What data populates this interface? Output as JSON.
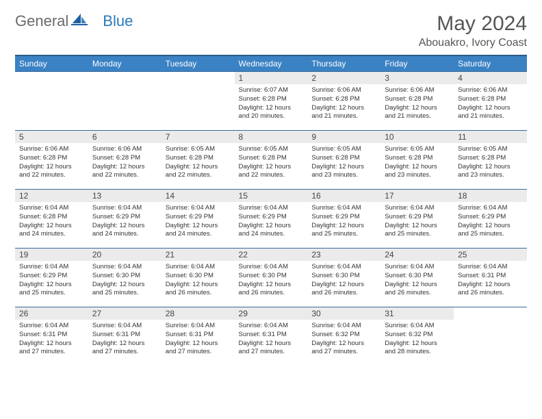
{
  "logo": {
    "text1": "General",
    "text2": "Blue"
  },
  "title": "May 2024",
  "location": "Abouakro, Ivory Coast",
  "colors": {
    "header_bg": "#3b82c4",
    "header_border_top": "#2a5a8a",
    "row_border": "#3b6a9a",
    "daynum_bg": "#ebebeb",
    "logo_accent": "#2a7ab8"
  },
  "day_labels": [
    "Sunday",
    "Monday",
    "Tuesday",
    "Wednesday",
    "Thursday",
    "Friday",
    "Saturday"
  ],
  "weeks": [
    [
      {
        "n": "",
        "sr": "",
        "ss": "",
        "dl": ""
      },
      {
        "n": "",
        "sr": "",
        "ss": "",
        "dl": ""
      },
      {
        "n": "",
        "sr": "",
        "ss": "",
        "dl": ""
      },
      {
        "n": "1",
        "sr": "6:07 AM",
        "ss": "6:28 PM",
        "dl": "12 hours and 20 minutes."
      },
      {
        "n": "2",
        "sr": "6:06 AM",
        "ss": "6:28 PM",
        "dl": "12 hours and 21 minutes."
      },
      {
        "n": "3",
        "sr": "6:06 AM",
        "ss": "6:28 PM",
        "dl": "12 hours and 21 minutes."
      },
      {
        "n": "4",
        "sr": "6:06 AM",
        "ss": "6:28 PM",
        "dl": "12 hours and 21 minutes."
      }
    ],
    [
      {
        "n": "5",
        "sr": "6:06 AM",
        "ss": "6:28 PM",
        "dl": "12 hours and 22 minutes."
      },
      {
        "n": "6",
        "sr": "6:06 AM",
        "ss": "6:28 PM",
        "dl": "12 hours and 22 minutes."
      },
      {
        "n": "7",
        "sr": "6:05 AM",
        "ss": "6:28 PM",
        "dl": "12 hours and 22 minutes."
      },
      {
        "n": "8",
        "sr": "6:05 AM",
        "ss": "6:28 PM",
        "dl": "12 hours and 22 minutes."
      },
      {
        "n": "9",
        "sr": "6:05 AM",
        "ss": "6:28 PM",
        "dl": "12 hours and 23 minutes."
      },
      {
        "n": "10",
        "sr": "6:05 AM",
        "ss": "6:28 PM",
        "dl": "12 hours and 23 minutes."
      },
      {
        "n": "11",
        "sr": "6:05 AM",
        "ss": "6:28 PM",
        "dl": "12 hours and 23 minutes."
      }
    ],
    [
      {
        "n": "12",
        "sr": "6:04 AM",
        "ss": "6:28 PM",
        "dl": "12 hours and 24 minutes."
      },
      {
        "n": "13",
        "sr": "6:04 AM",
        "ss": "6:29 PM",
        "dl": "12 hours and 24 minutes."
      },
      {
        "n": "14",
        "sr": "6:04 AM",
        "ss": "6:29 PM",
        "dl": "12 hours and 24 minutes."
      },
      {
        "n": "15",
        "sr": "6:04 AM",
        "ss": "6:29 PM",
        "dl": "12 hours and 24 minutes."
      },
      {
        "n": "16",
        "sr": "6:04 AM",
        "ss": "6:29 PM",
        "dl": "12 hours and 25 minutes."
      },
      {
        "n": "17",
        "sr": "6:04 AM",
        "ss": "6:29 PM",
        "dl": "12 hours and 25 minutes."
      },
      {
        "n": "18",
        "sr": "6:04 AM",
        "ss": "6:29 PM",
        "dl": "12 hours and 25 minutes."
      }
    ],
    [
      {
        "n": "19",
        "sr": "6:04 AM",
        "ss": "6:29 PM",
        "dl": "12 hours and 25 minutes."
      },
      {
        "n": "20",
        "sr": "6:04 AM",
        "ss": "6:30 PM",
        "dl": "12 hours and 25 minutes."
      },
      {
        "n": "21",
        "sr": "6:04 AM",
        "ss": "6:30 PM",
        "dl": "12 hours and 26 minutes."
      },
      {
        "n": "22",
        "sr": "6:04 AM",
        "ss": "6:30 PM",
        "dl": "12 hours and 26 minutes."
      },
      {
        "n": "23",
        "sr": "6:04 AM",
        "ss": "6:30 PM",
        "dl": "12 hours and 26 minutes."
      },
      {
        "n": "24",
        "sr": "6:04 AM",
        "ss": "6:30 PM",
        "dl": "12 hours and 26 minutes."
      },
      {
        "n": "25",
        "sr": "6:04 AM",
        "ss": "6:31 PM",
        "dl": "12 hours and 26 minutes."
      }
    ],
    [
      {
        "n": "26",
        "sr": "6:04 AM",
        "ss": "6:31 PM",
        "dl": "12 hours and 27 minutes."
      },
      {
        "n": "27",
        "sr": "6:04 AM",
        "ss": "6:31 PM",
        "dl": "12 hours and 27 minutes."
      },
      {
        "n": "28",
        "sr": "6:04 AM",
        "ss": "6:31 PM",
        "dl": "12 hours and 27 minutes."
      },
      {
        "n": "29",
        "sr": "6:04 AM",
        "ss": "6:31 PM",
        "dl": "12 hours and 27 minutes."
      },
      {
        "n": "30",
        "sr": "6:04 AM",
        "ss": "6:32 PM",
        "dl": "12 hours and 27 minutes."
      },
      {
        "n": "31",
        "sr": "6:04 AM",
        "ss": "6:32 PM",
        "dl": "12 hours and 28 minutes."
      },
      {
        "n": "",
        "sr": "",
        "ss": "",
        "dl": ""
      }
    ]
  ],
  "labels": {
    "sunrise": "Sunrise: ",
    "sunset": "Sunset: ",
    "daylight": "Daylight: "
  }
}
